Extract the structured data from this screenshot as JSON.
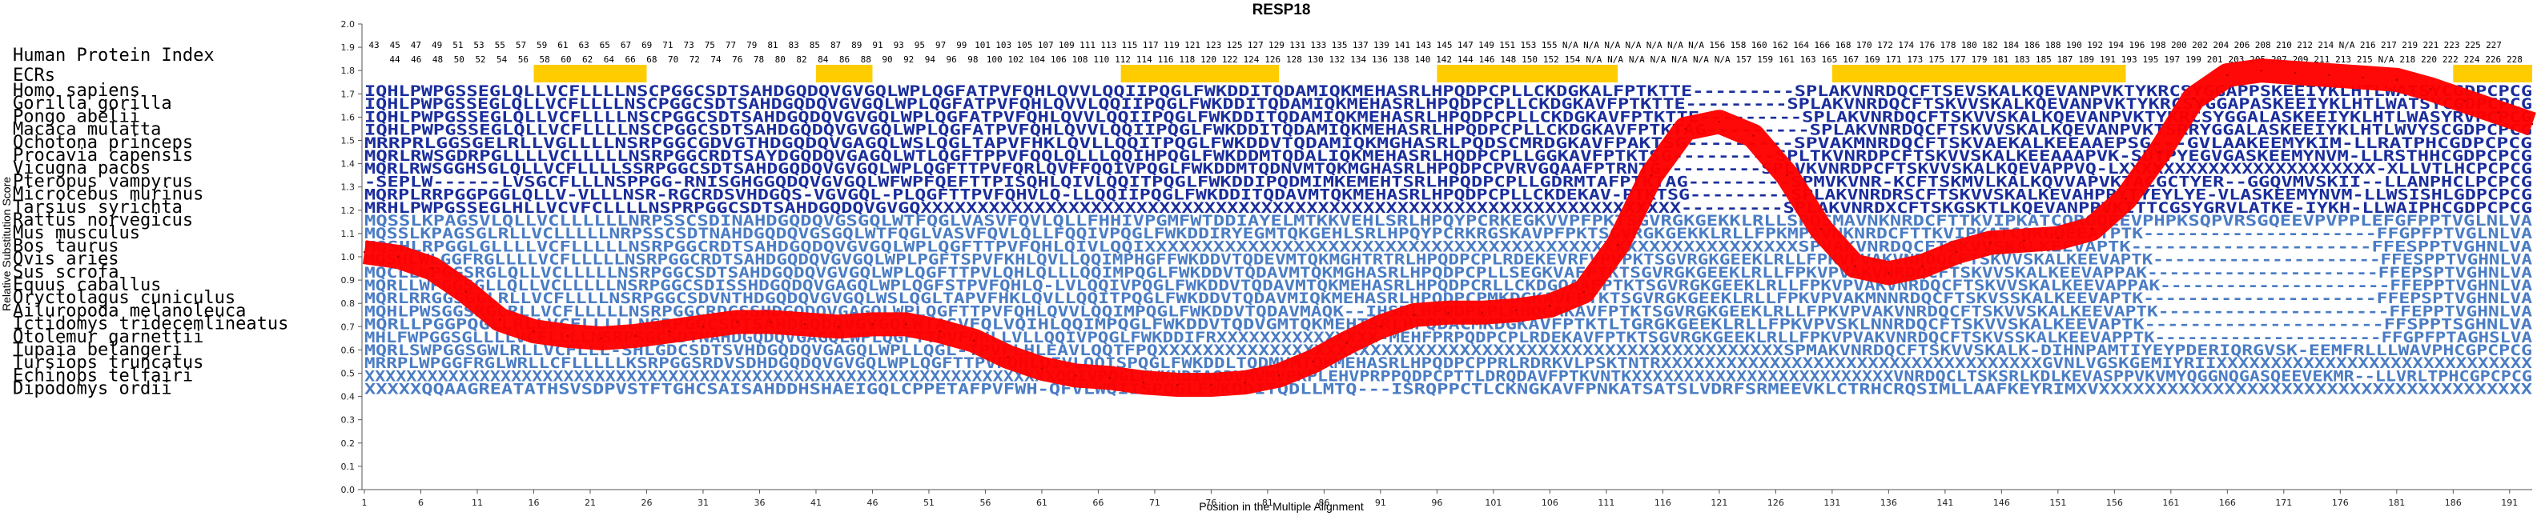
{
  "chart_data": {
    "type": "line",
    "title": "RESP18",
    "xlabel": "Position in the Multiple Alignment",
    "ylabel": "Relative Substitution Score",
    "ylim": [
      0,
      2.0
    ],
    "xlim": [
      1,
      193
    ],
    "yticks": [
      "0.0",
      "0.1",
      "0.2",
      "0.3",
      "0.4",
      "0.5",
      "0.6",
      "0.7",
      "0.8",
      "0.9",
      "1.0",
      "1.1",
      "1.2",
      "1.3",
      "1.4",
      "1.5",
      "1.6",
      "1.7",
      "1.8",
      "1.9",
      "2.0"
    ],
    "xticks": [
      "1",
      "6",
      "11",
      "16",
      "21",
      "26",
      "31",
      "36",
      "41",
      "46",
      "51",
      "56",
      "61",
      "66",
      "71",
      "76",
      "81",
      "86",
      "91",
      "96",
      "101",
      "106",
      "111",
      "116",
      "121",
      "126",
      "131",
      "136",
      "141",
      "146",
      "151",
      "156",
      "161",
      "166",
      "171",
      "176",
      "181",
      "186",
      "191"
    ],
    "hpi_label": "Human Protein Index",
    "ecr_label": "ECRs",
    "hpi_row1": [
      "43",
      "45",
      "47",
      "49",
      "51",
      "53",
      "55",
      "57",
      "59",
      "61",
      "63",
      "65",
      "67",
      "69",
      "71",
      "73",
      "75",
      "77",
      "79",
      "81",
      "83",
      "85",
      "87",
      "89",
      "91",
      "93",
      "95",
      "97",
      "99",
      "101",
      "103",
      "105",
      "107",
      "109",
      "111",
      "113",
      "115",
      "117",
      "119",
      "121",
      "123",
      "125",
      "127",
      "129",
      "131",
      "133",
      "135",
      "137",
      "139",
      "141",
      "143",
      "145",
      "147",
      "149",
      "151",
      "153",
      "155",
      "N/A",
      "N/A",
      "N/A",
      "N/A",
      "N/A",
      "N/A",
      "N/A",
      "156",
      "158",
      "160",
      "162",
      "164",
      "166",
      "168",
      "170",
      "172",
      "174",
      "176",
      "178",
      "180",
      "182",
      "184",
      "186",
      "188",
      "190",
      "192",
      "194",
      "196",
      "198",
      "200",
      "202",
      "204",
      "206",
      "208",
      "210",
      "212",
      "214",
      "N/A",
      "216",
      "217",
      "219",
      "221",
      "223",
      "225",
      "227"
    ],
    "hpi_row2": [
      "44",
      "46",
      "48",
      "50",
      "52",
      "54",
      "56",
      "58",
      "60",
      "62",
      "64",
      "66",
      "68",
      "70",
      "72",
      "74",
      "76",
      "78",
      "80",
      "82",
      "84",
      "86",
      "88",
      "90",
      "92",
      "94",
      "96",
      "98",
      "100",
      "102",
      "104",
      "106",
      "108",
      "110",
      "112",
      "114",
      "116",
      "118",
      "120",
      "122",
      "124",
      "126",
      "128",
      "130",
      "132",
      "134",
      "136",
      "138",
      "140",
      "142",
      "144",
      "146",
      "148",
      "150",
      "152",
      "154",
      "N/A",
      "N/A",
      "N/A",
      "N/A",
      "N/A",
      "N/A",
      "N/A",
      "157",
      "159",
      "161",
      "163",
      "165",
      "167",
      "169",
      "171",
      "173",
      "175",
      "177",
      "179",
      "181",
      "183",
      "185",
      "187",
      "189",
      "191",
      "193",
      "195",
      "197",
      "199",
      "201",
      "203",
      "205",
      "207",
      "209",
      "211",
      "213",
      "215",
      "N/A",
      "218",
      "220",
      "222",
      "224",
      "226",
      "228"
    ],
    "ecr_ranges": [
      [
        16,
        26
      ],
      [
        41,
        46
      ],
      [
        68,
        82
      ],
      [
        96,
        112
      ],
      [
        131,
        157
      ],
      [
        186,
        193
      ]
    ],
    "rows": [
      {
        "species": "Homo sapiens",
        "seq": "IQHLPWPGSSEGLQLLVCFLLLLNSCPGGCSDTSAHDGQDQVGVGQLWPLQGFATPVFQHLQVVLQQIIPQGLFWKDDITQDAMIQKMEHASRLHPQDPCPLLCKDGKALFPTKTTE---------SPLAKVNRDQCFTSEVSKALKQEVANPVKTYKRCSYGGAPPSKEEIYKLHTLWATSYCGDPCPCG"
      },
      {
        "species": "Gorilla gorilla",
        "seq": "IQHLPWPGSSEGLQLLVCFLLLLNSCPGGCSDTSAHDGQDQVGVGQLWPLQGFATPVFQHLQVVLQQIIPQGLFWKDDITQDAMIQKMEHASRLHPQDPCPLLCKDGKAVFPTKTTE---------SPLAKVNRDQCFTSKVVSKALKQEVANPVKTYKRCSYGGAPASKEEIYKLHTLWATSYCGDPCPCG"
      },
      {
        "species": "Pongo abelii",
        "seq": "IQHLPWPGSSEGLQLLVCFLLLLNSCPGGCSDTSAHDGQDQVGVGQLWPLQGFATPVFQHLQVVLQQIIPQGLFWKDDITQDAMIQKMEHASRLHPQDPCPLLCKDGKAVFPTKTTE---------SPLAKVNRDQCFTSKVVSKALKQEVANPVKTYKRCSYGGALASKEEIYKLHTLWASYRVPCPCG"
      },
      {
        "species": "Macaca mulatta",
        "seq": "IQHLPWPGSSEGLQLLVCFLLLLNSCPGGCSDTSAHDGQDQVGVGQLWPLQGFATPVFQHLQVVLQQIIPQGLFWKDDITQDAMIQKMEHASRLHPQDPCPLLCKDGKAVFPTKTAG---------SPLAKVNRDQCFTSKVVSKALKQEVANPVKTSRRYGGALASKEEIYKLHTLWVYSCGDPCPCG"
      },
      {
        "species": "Ochotona princeps",
        "seq": "MRRPRLGGSGELRLLVGLLLLNSRPGGCGDVGTHDGQDQVGAGQLWSLQGLTAPVFHKLQVLLQQITPQGLFWKDDVTQDAMIQKMGHASRLPQDSCMRDGKAVFPAKTSG---------SPVAKMNRDQCFTSKVAEKALKEEAAEPSG---GVLAAKEEMYKIM-LLRATPHCGDPCPCG"
      },
      {
        "species": "Procavia capensis",
        "seq": "MQRLRWSGDRPGLLLLVCLLLLLNSRPGGCRDTSAYDGQDQVGAGQLWTLQGFTPPVFQQLQLLLQQIHPQGLFWKDDMTQDALIQKMEHASRLHQDPCPLLGGKAVFPTKTSG---------SPLTKVNRDPCFTSKVVSKALKEEAAAPVK-SDYPYEGVGASKEEMYNVM-LLRSTHHCGDPCPCG"
      },
      {
        "species": "Vicugna pacos",
        "seq": "MQRLRWSGGHSGLQLLVCFLLLLSSRPGGCSDTSAHDGQDQVGVGQLWPLQGFTTPVFQRLQVFFQQIVPQGLFWKDDMTQDNVMTQKMGHASRLHPQDPCPVRVGQAAFPTRNTG---------SPLVKVNRDPCFTSKVVSKALKQEVAPPVQ-LXXXXXXXXXXXXXXXXXXXXXXX-XLLVTLHCPCPCG"
      },
      {
        "species": "Pteropus vampyrus",
        "seq": "-SEPLW------LVSGCFLLLNSPPGG-RNISGHGGQDQVGVGQLWFWPFQEFTTPISQHLQIVLQQITPQGLFWKDDIPQDMIMKEMEHTSRLHPQDPCPLLGDRMTAFPTKTAG---------SPMVKVNR-KCFTSKMVLKALKQVVAPVKTACGCTYER--GGQVMVSKII--LLANPHCLPCPCG"
      },
      {
        "species": "Microcebus murinus",
        "seq": "MQRPLRRPGGPGGLQLLV-VLLLNSR-RGCRDSVHDGQS-VGVGQL-PLQGFTTPVFQHVLQ-LLQQIIPQGLFWKDDITQDAVMTQKMEHASRLHPQDPCPLLCKDEKAV-PTKTSG---------SPLAKVNRDRSCFTSKVVSKALKEVAHPPYTYEYLYE-VLASKEEMYNVM-LLWSISHLGDPCPCG"
      },
      {
        "species": "Tarsius syrichta",
        "seq": "MRHLPWPGSSEGLHLLVCVFCLLLLNSPRPGGCSDTSAHDGQDQVGVGQXXXXXXXXXXXXXXXXXXXXXXXXXXXXXXXXXXXXXXXXXXXXXXXXXXXXXXXXXXXXXXXXXXX---------SPLAKVNRDXCFTSKGSKTLKQEVANPPVKITTCGSYGRVLATKE-IYKH-LLWAIPHCGDPCPCG"
      },
      {
        "species": "Rattus norvegicus",
        "seq": "MQSSLKPAGSVLQLLVCLLLLLLNRPSSCSDINAHDGQDQVGSGQLWTFQGLVASVFQVLQLLFHHIVPGMFWTDDIAYELMTKKVEHLSRLHPQYPCRKEGKVVPFPKTSGVRGKGEKKLRLLSPQSMAVNKNRDCFTTKVIPKATCQRGQEEVPHPKSQPVRSGQEEVPVPPLEFGFPPTVGLNLVA"
      },
      {
        "species": "Mus musculus",
        "seq": "MQSSLKPAGSGLRLLVCLLLLLNRPSSCSDTNAHDGQDQVGSGQLWTFQGLVASVFQVLQLLFQQIVPQGLFWKDDIRYEGMTQKGEHLSRLHPQYPCRKRGSKAVPFPKTSGVRGKGEKKLRLLFPKMPAVNKNRDCFTTKVIPKATCQRGQEEATPTK---------------------FFGPFPTVGLNLVA"
      },
      {
        "species": "Bos taurus",
        "seq": "MQSHLRPGGLGLLLLVCFLLLLLNSRPGGCRDTSAHDGQDQVGVGQLWPLQGFTTPVFQHLQIVLQQIXXXXXXXXXXXXXXXXXXXXXXXXXXXXXXXXXXXXXXXXXXXXXXXXXXXXXXXXXSPVAKVNRDQCFTSKVVSKALKEEVAPTK---------------------FFESPPTVGHNLVA"
      },
      {
        "species": "Ovis aries",
        "seq": "MQSHLWLGGFRGLLLLVCFLLLLLNSRPGGCRDTSAHDGQDQVGVGQLWPLPGFTSPVFKHLQVLLQQIMPHGFFWKDDVTQDEVMTQKMGHTRTRLHPQDPCPLRDEKEVRFVPVPKTSGVRGKGEEKLRLLFPKVPVAKVNRDQCFTSKVVSKALKEEVAPTK---------------------FFESPPTVGHNLVA"
      },
      {
        "species": "Sus scrofa",
        "seq": "MQCLLWPGGSRGLQLLVCLLLLLNSRPGGCSDTSAHDGQDQVGVGQLWPLQGFTTPVLQHLQLLLQQIMPQGLFWKDDVTQDAVMTQKMGHASRLHPQDPCPLLSEGKVAFPTKTSGVRGKGEEKLRLLFPKVPVAKVNRDQCFTSKVVSKALKEEVAPPAK---------------------FFEPSPTVGHNLVA"
      },
      {
        "species": "Equus caballus",
        "seq": "MQRLLWPGGSGLLQLLVCLLLLLNSRPGGCSDISSHDGQDQVGAGQLWPLQGFSTPVFQHLQ-LVLQQIVPQGLFWKDDVTQDAVMTQKMEHASRLHPQDPCRLLCKDGQAAFPTKTSGVRGKGEEKLRLLFPKVPVAKVNRDQCFTSKVVSKALKEEVAPPAK---------------------FFEPPTVGHNLVA"
      },
      {
        "species": "Oryctolagus cuniculus",
        "seq": "MQRLRRGGSGGLRLLVCFLLLLNSRPGGCSDVNTHDGQDQVGVGQLWSLQGLTAPVFHKLQVLLQQITPQGLFWKDDVTQDAVMIQKMEHASRLHPQDPCPMKDGKAVFPTKTSGVRGKGEEKLRLLFPKVPVAKMNNRDQCFTSKVSSKALKEEVAPTK---------------------FFEPSPTVGHNLVA"
      },
      {
        "species": "Ailuropoda melanoleuca",
        "seq": "MQHLPWSGGSRGLRLLVCFLLLLLNSRPGGCRDGSSHDGQDQVGAGQLWPLQGFTTPVFQHLQVVLQQIMPQGLFWKDDVTQDAVMAQK--IHSRLHPQDPCPLRHQGAKAVFPTKTSGVRGKGEEKLRLLFPKVPVAKVNRDQCFTSKVVSKALKEEVAPTK---------------------FFEPPTVGHNLVA"
      },
      {
        "species": "Ictidomys tridecemlineatus",
        "seq": "MQRLLPGGPQGLLRLLVCFLLLLLNSRPGGCSDTSAHDGQDQVGVGQLWTASVFQLVQIHLQQIMPQGLFWKDDVTQDVGMTQKMEHTSRLHPQDACMKDGKAVFPTKTLTGRGKGEEKLRLLFPKVPVSKLNNRDQCFTSKVVSKALKEEVAPTK---------------------FFSPPTSGHNLVA"
      },
      {
        "species": "Otolemur garnettii",
        "seq": "MHLFWPGGSGLLLLVCFLLLLNSRPSGCSDTNAHDGQDQVGAGQLWPLQGFTTPVFQHLLVLLQQIVPQGLFWKDDIFRXXXXXXXXXXXXXXX-MEHFPRPQDPCPLRDEKAVFPTKTSGVRGKGEEKLRLLFPKVPVAKVNRDQCFTSKVSSKALKEEVAPPTK---------------------FFGPFPTAGHSLVA"
      },
      {
        "species": "Tupaia belangeri",
        "seq": "MQRLSWPGGSGWLRLLVCFLLL-SHLGDCSDTSVHDGQDQVGAGQLWPLLQGL-TPVFLHLEAVLQQTFPQXXXXXXXXXXXXXXXXXXXXXXXXXXXXXXXXXXXXXXXXXXXXXXXXXXXXXXXXSPMAKVNRDQCFTSKVVSKALK-DIHNPAMTIYEYPDERIQRGVSK-EEMFRLLLWAVPHCGPCPCG"
      },
      {
        "species": "Tursiops truncatus",
        "seq": "MRRPLWPGGFRGLWRLLCFLLLLLKSRPGGSRDVSDHDGQDQVGVGQLWPLQGFTTPVFQHLQIVLQQISPQGLFWKDDLTQDMVMTQKMEHASRLHPQDPCPPRLRDRKVLPSKTNTRXXXXXXXXXXXXXXXXXXXXXXXXXXXXXXXXXXXGVNLVGSKGEMIYRIIXXXXXXXXXXXXXXXXXXXXXXXXXXXXX"
      },
      {
        "species": "Echinops telfairi",
        "seq": "XXXXXXXXXXXXXXXXXXXXXXXXXXXXXXXXXXXXXXXXXXXXXXXXXXXXXXXXXXXXXXXXXXQQIVPQGLFWKNDIAQDVMVMVPKPLEHVPRPPQDPCPTTLDRQDAVFPTKVNTKXXXXXXXXXXXXXXXXXXXXXXXXXVNRDQCLTSKSRLKDLKEVASPPVKVMYQGGNQGASQEEVEKMR--LLVRLTPHCGPCPCG"
      },
      {
        "species": "Dipodomys ordii",
        "seq": "XXXXXQQAAGREATATHSVSDPVSTFTGHCSAISAHDDHSHAEIGQLCPPETAFPVFWH-QFVLWQIISPQGLFWKDDITQDLLMTQ---ISRQPPCTLCKNGKAVFPNKATSATSLVDRFSRMEEVKLCTRHCRQSIMLLAAFKEYRIMXVXXXXXXXXXXXXXXXXXXXXXXXXXXXXXXXXXXXXXX"
      }
    ],
    "score_x": [
      1,
      4,
      7,
      10,
      13,
      16,
      19,
      22,
      25,
      28,
      31,
      34,
      37,
      40,
      43,
      46,
      49,
      52,
      55,
      58,
      61,
      64,
      67,
      70,
      73,
      76,
      79,
      82,
      85,
      88,
      91,
      94,
      97,
      100,
      103,
      106,
      109,
      112,
      115,
      118,
      121,
      124,
      127,
      130,
      133,
      136,
      139,
      142,
      145,
      148,
      151,
      154,
      157,
      160,
      163,
      166,
      169,
      172,
      175,
      178,
      181,
      184,
      187,
      190,
      193
    ],
    "score_y": [
      1.02,
      1.0,
      0.95,
      0.85,
      0.73,
      0.68,
      0.66,
      0.65,
      0.66,
      0.68,
      0.7,
      0.72,
      0.72,
      0.71,
      0.7,
      0.71,
      0.71,
      0.68,
      0.64,
      0.57,
      0.52,
      0.49,
      0.48,
      0.46,
      0.45,
      0.45,
      0.46,
      0.49,
      0.55,
      0.63,
      0.7,
      0.75,
      0.76,
      0.76,
      0.77,
      0.79,
      0.85,
      1.05,
      1.35,
      1.55,
      1.58,
      1.52,
      1.35,
      1.12,
      0.96,
      0.93,
      0.96,
      1.02,
      1.06,
      1.07,
      1.08,
      1.12,
      1.25,
      1.45,
      1.68,
      1.78,
      1.8,
      1.79,
      1.78,
      1.77,
      1.76,
      1.72,
      1.67,
      1.62,
      1.57
    ],
    "colors": {
      "score_band": "#ff0000",
      "ecr_bar": "#ffcc00",
      "conserved": "#1a2d9c",
      "partial": "#4a7cc4",
      "variable": "#6fae9f",
      "axis": "#555555"
    }
  }
}
